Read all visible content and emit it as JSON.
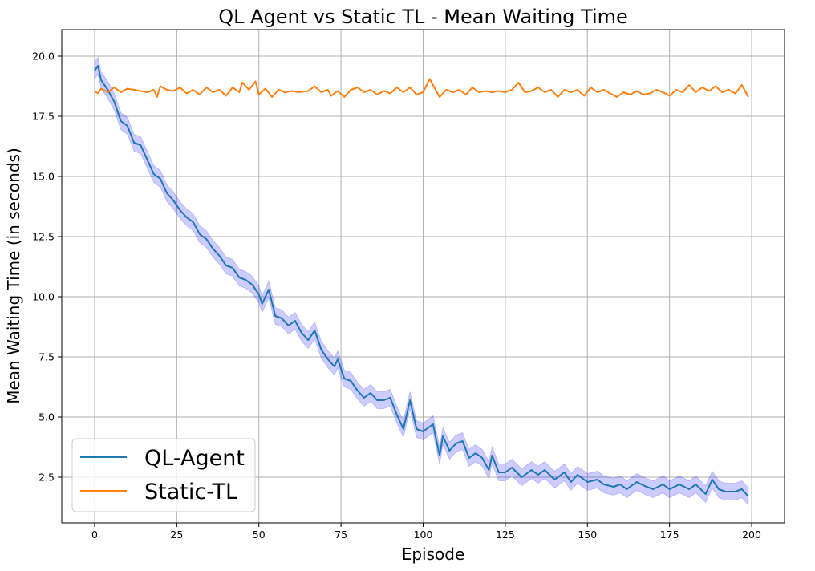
{
  "chart_data": {
    "type": "line",
    "title": "QL Agent vs Static TL - Mean Waiting Time",
    "xlabel": "Episode",
    "ylabel": "Mean Waiting Time (in seconds)",
    "xlim": [
      -10,
      210
    ],
    "ylim": [
      0.6,
      21.1
    ],
    "xticks": [
      0,
      25,
      50,
      75,
      100,
      125,
      150,
      175,
      200
    ],
    "xtick_labels": [
      "0",
      "25",
      "50",
      "75",
      "100",
      "125",
      "150",
      "175",
      "200"
    ],
    "yticks": [
      2.5,
      5.0,
      7.5,
      10.0,
      12.5,
      15.0,
      17.5,
      20.0
    ],
    "ytick_labels": [
      "2.5",
      "5.0",
      "7.5",
      "10.0",
      "12.5",
      "15.0",
      "17.5",
      "20.0"
    ],
    "grid": true,
    "legend": "lower-left",
    "band_halfwidth": 0.35,
    "series": [
      {
        "name": "QL-Agent",
        "color": "#1f77b4",
        "band_color": "#0000ff",
        "x_start": 0,
        "x_end": 199,
        "anchors": [
          [
            0,
            19.4
          ],
          [
            1,
            19.6
          ],
          [
            2,
            19.0
          ],
          [
            4,
            18.6
          ],
          [
            6,
            18.1
          ],
          [
            8,
            17.3
          ],
          [
            10,
            17.1
          ],
          [
            12,
            16.4
          ],
          [
            14,
            16.3
          ],
          [
            16,
            15.7
          ],
          [
            18,
            15.1
          ],
          [
            20,
            14.9
          ],
          [
            22,
            14.3
          ],
          [
            24,
            14.0
          ],
          [
            26,
            13.6
          ],
          [
            28,
            13.3
          ],
          [
            30,
            13.1
          ],
          [
            32,
            12.6
          ],
          [
            34,
            12.4
          ],
          [
            36,
            12.0
          ],
          [
            38,
            11.7
          ],
          [
            40,
            11.3
          ],
          [
            42,
            11.2
          ],
          [
            44,
            10.8
          ],
          [
            46,
            10.7
          ],
          [
            48,
            10.5
          ],
          [
            50,
            10.1
          ],
          [
            51,
            9.7
          ],
          [
            53,
            10.3
          ],
          [
            55,
            9.2
          ],
          [
            57,
            9.1
          ],
          [
            59,
            8.8
          ],
          [
            61,
            9.0
          ],
          [
            63,
            8.5
          ],
          [
            65,
            8.2
          ],
          [
            67,
            8.6
          ],
          [
            69,
            7.8
          ],
          [
            71,
            7.4
          ],
          [
            73,
            7.1
          ],
          [
            74,
            7.4
          ],
          [
            76,
            6.6
          ],
          [
            78,
            6.5
          ],
          [
            80,
            6.1
          ],
          [
            82,
            5.8
          ],
          [
            84,
            6.0
          ],
          [
            86,
            5.7
          ],
          [
            88,
            5.7
          ],
          [
            90,
            5.8
          ],
          [
            92,
            5.1
          ],
          [
            94,
            4.5
          ],
          [
            96,
            5.7
          ],
          [
            98,
            4.5
          ],
          [
            100,
            4.4
          ],
          [
            103,
            4.7
          ],
          [
            105,
            3.4
          ],
          [
            106,
            4.2
          ],
          [
            108,
            3.6
          ],
          [
            110,
            3.9
          ],
          [
            112,
            4.0
          ],
          [
            114,
            3.3
          ],
          [
            116,
            3.5
          ],
          [
            118,
            3.3
          ],
          [
            120,
            2.8
          ],
          [
            121,
            3.4
          ],
          [
            123,
            2.7
          ],
          [
            125,
            2.7
          ],
          [
            127,
            2.9
          ],
          [
            130,
            2.5
          ],
          [
            133,
            2.8
          ],
          [
            135,
            2.6
          ],
          [
            137,
            2.8
          ],
          [
            140,
            2.4
          ],
          [
            143,
            2.7
          ],
          [
            145,
            2.3
          ],
          [
            147,
            2.6
          ],
          [
            150,
            2.3
          ],
          [
            153,
            2.4
          ],
          [
            155,
            2.2
          ],
          [
            158,
            2.1
          ],
          [
            160,
            2.2
          ],
          [
            162,
            2.0
          ],
          [
            165,
            2.3
          ],
          [
            168,
            2.1
          ],
          [
            170,
            2.0
          ],
          [
            173,
            2.2
          ],
          [
            175,
            2.0
          ],
          [
            178,
            2.2
          ],
          [
            181,
            2.0
          ],
          [
            183,
            2.2
          ],
          [
            186,
            1.8
          ],
          [
            188,
            2.4
          ],
          [
            190,
            2.0
          ],
          [
            192,
            1.9
          ],
          [
            195,
            1.9
          ],
          [
            197,
            2.0
          ],
          [
            199,
            1.7
          ]
        ]
      },
      {
        "name": "Static-TL",
        "color": "#ff7f0e",
        "x_start": 0,
        "x_end": 199,
        "anchors": [
          [
            0,
            18.55
          ],
          [
            1,
            18.45
          ],
          [
            2,
            18.65
          ],
          [
            4,
            18.5
          ],
          [
            6,
            18.7
          ],
          [
            8,
            18.5
          ],
          [
            10,
            18.65
          ],
          [
            12,
            18.6
          ],
          [
            14,
            18.55
          ],
          [
            16,
            18.5
          ],
          [
            18,
            18.6
          ],
          [
            19,
            18.3
          ],
          [
            20,
            18.75
          ],
          [
            22,
            18.6
          ],
          [
            24,
            18.55
          ],
          [
            26,
            18.7
          ],
          [
            28,
            18.45
          ],
          [
            30,
            18.6
          ],
          [
            32,
            18.4
          ],
          [
            34,
            18.7
          ],
          [
            36,
            18.5
          ],
          [
            38,
            18.6
          ],
          [
            40,
            18.35
          ],
          [
            42,
            18.7
          ],
          [
            44,
            18.5
          ],
          [
            45,
            18.9
          ],
          [
            47,
            18.6
          ],
          [
            49,
            18.95
          ],
          [
            50,
            18.4
          ],
          [
            52,
            18.65
          ],
          [
            54,
            18.3
          ],
          [
            56,
            18.6
          ],
          [
            58,
            18.5
          ],
          [
            60,
            18.55
          ],
          [
            62,
            18.5
          ],
          [
            65,
            18.55
          ],
          [
            67,
            18.75
          ],
          [
            69,
            18.5
          ],
          [
            71,
            18.6
          ],
          [
            72,
            18.35
          ],
          [
            74,
            18.55
          ],
          [
            76,
            18.3
          ],
          [
            78,
            18.6
          ],
          [
            80,
            18.7
          ],
          [
            82,
            18.5
          ],
          [
            84,
            18.6
          ],
          [
            86,
            18.4
          ],
          [
            88,
            18.55
          ],
          [
            90,
            18.45
          ],
          [
            92,
            18.7
          ],
          [
            94,
            18.5
          ],
          [
            96,
            18.7
          ],
          [
            98,
            18.4
          ],
          [
            100,
            18.5
          ],
          [
            102,
            19.05
          ],
          [
            104,
            18.55
          ],
          [
            105,
            18.3
          ],
          [
            107,
            18.6
          ],
          [
            109,
            18.5
          ],
          [
            111,
            18.6
          ],
          [
            113,
            18.4
          ],
          [
            115,
            18.7
          ],
          [
            117,
            18.5
          ],
          [
            119,
            18.55
          ],
          [
            121,
            18.5
          ],
          [
            123,
            18.55
          ],
          [
            125,
            18.5
          ],
          [
            127,
            18.6
          ],
          [
            129,
            18.9
          ],
          [
            131,
            18.5
          ],
          [
            133,
            18.55
          ],
          [
            135,
            18.7
          ],
          [
            137,
            18.5
          ],
          [
            139,
            18.6
          ],
          [
            141,
            18.3
          ],
          [
            143,
            18.6
          ],
          [
            145,
            18.5
          ],
          [
            147,
            18.6
          ],
          [
            149,
            18.35
          ],
          [
            151,
            18.7
          ],
          [
            153,
            18.5
          ],
          [
            155,
            18.6
          ],
          [
            157,
            18.45
          ],
          [
            159,
            18.3
          ],
          [
            161,
            18.5
          ],
          [
            163,
            18.4
          ],
          [
            165,
            18.55
          ],
          [
            167,
            18.4
          ],
          [
            169,
            18.45
          ],
          [
            171,
            18.6
          ],
          [
            173,
            18.5
          ],
          [
            175,
            18.35
          ],
          [
            177,
            18.6
          ],
          [
            179,
            18.5
          ],
          [
            181,
            18.8
          ],
          [
            183,
            18.5
          ],
          [
            185,
            18.7
          ],
          [
            187,
            18.55
          ],
          [
            189,
            18.75
          ],
          [
            191,
            18.5
          ],
          [
            193,
            18.6
          ],
          [
            195,
            18.45
          ],
          [
            197,
            18.8
          ],
          [
            199,
            18.3
          ]
        ]
      }
    ]
  }
}
